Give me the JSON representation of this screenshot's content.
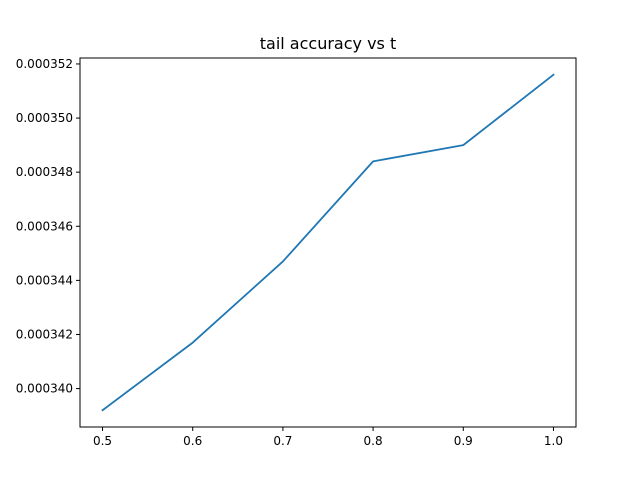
{
  "chart_data": {
    "type": "line",
    "title": "tail accuracy vs t",
    "xlabel": "",
    "ylabel": "",
    "x": [
      0.5,
      0.6,
      0.7,
      0.8,
      0.9,
      1.0
    ],
    "series": [
      {
        "values": [
          0.0003392,
          0.0003417,
          0.0003447,
          0.0003484,
          0.000349,
          0.0003516
        ],
        "color": "#1f77b4"
      }
    ],
    "xticks": [
      0.5,
      0.6,
      0.7,
      0.8,
      0.9,
      1.0
    ],
    "xtick_labels": [
      "0.5",
      "0.6",
      "0.7",
      "0.8",
      "0.9",
      "1.0"
    ],
    "yticks": [
      0.00034,
      0.000342,
      0.000344,
      0.000346,
      0.000348,
      0.00035,
      0.000352
    ],
    "ytick_labels": [
      "0.000340",
      "0.000342",
      "0.000344",
      "0.000346",
      "0.000348",
      "0.000350",
      "0.000352"
    ],
    "xlim": [
      0.475,
      1.025
    ],
    "ylim": [
      0.00033858,
      0.00035222
    ],
    "grid": false,
    "legend": "none"
  }
}
